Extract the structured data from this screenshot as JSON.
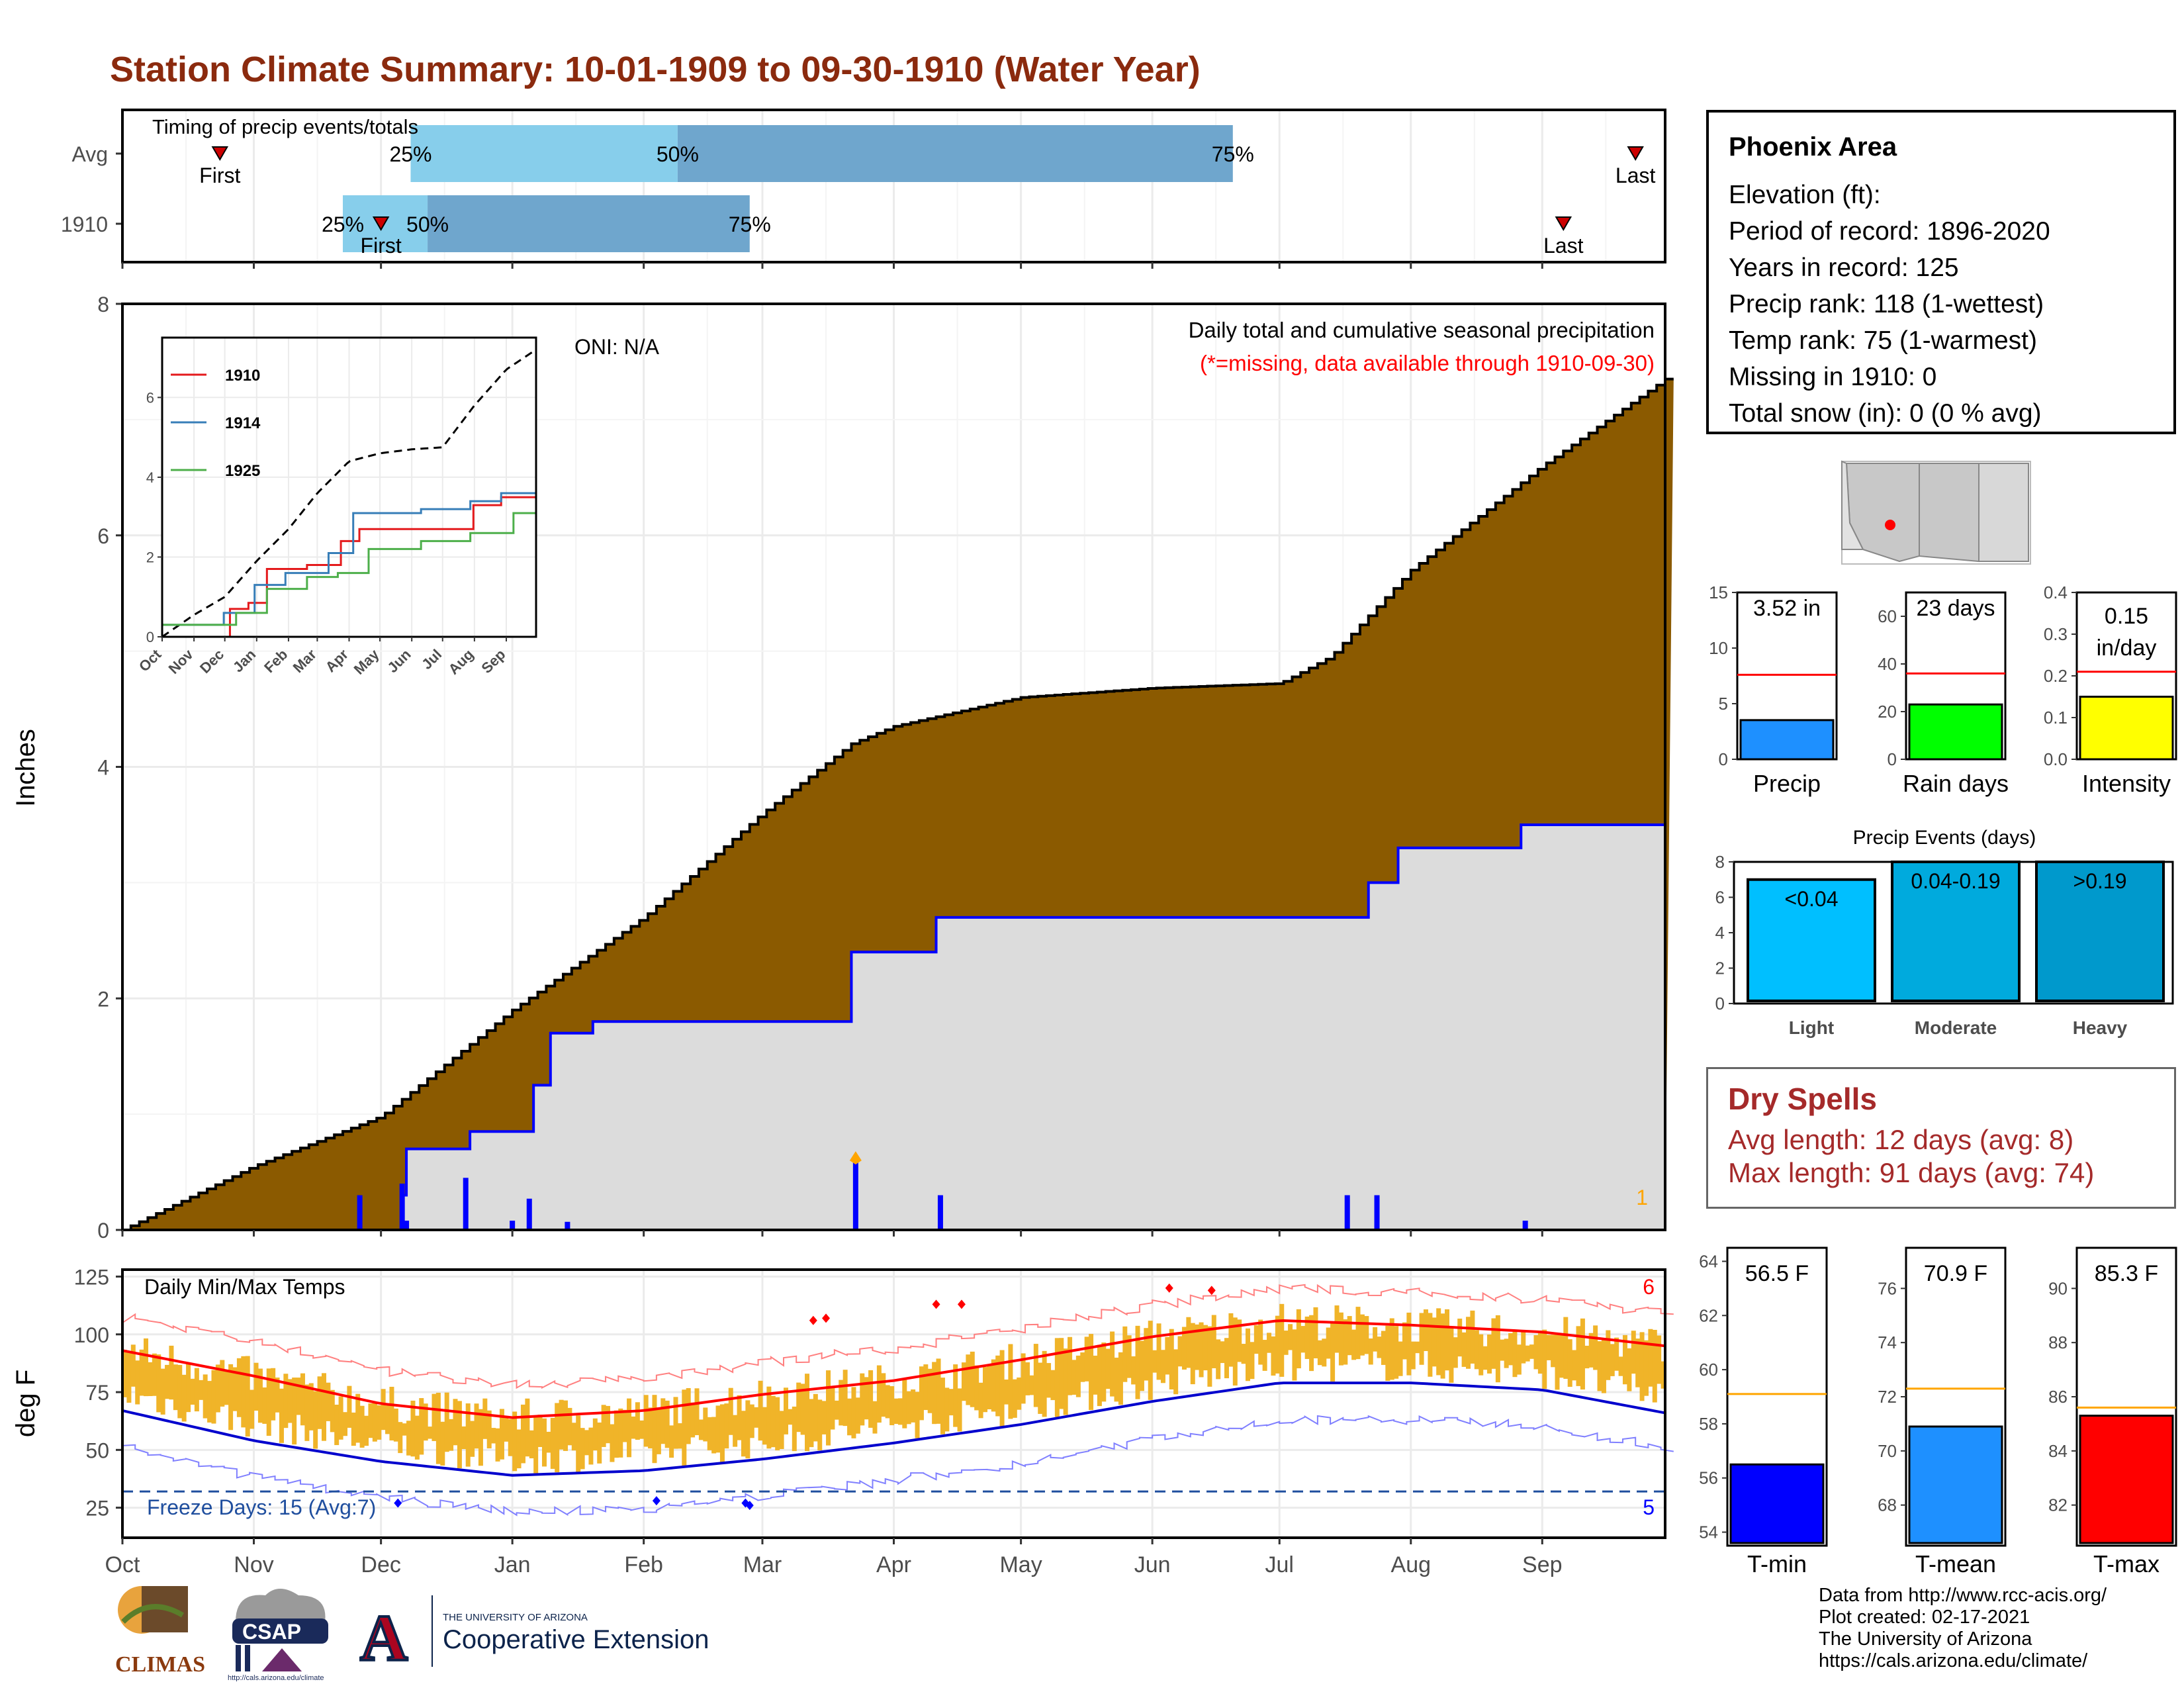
{
  "title": "Station Climate Summary: 10-01-1909 to 09-30-1910 (Water Year)",
  "timing": {
    "caption": "Timing of precip events/totals",
    "rows": [
      {
        "label": "Avg",
        "first_day": 23,
        "last_day": 357,
        "p25": 68,
        "p50": 131,
        "p75": 262,
        "pct_labels": [
          "25%",
          "50%",
          "75%"
        ],
        "first_label": "First",
        "last_label": "Last"
      },
      {
        "label": "1910",
        "first_day": 61,
        "last_day": 340,
        "p25": 52,
        "p50": 72,
        "p75": 148,
        "pct_labels": [
          "25%",
          "50%",
          "75%"
        ],
        "first_label": "First",
        "last_label": "Last"
      }
    ],
    "colors": {
      "light": "#87ceeb",
      "dark": "#6fa6cd",
      "marker": "#cc0000"
    }
  },
  "precip_panel": {
    "ylabel": "Inches",
    "yticks": [
      "0",
      "2",
      "4",
      "6",
      "8"
    ],
    "oni": "ONI: N/A",
    "caption": "Daily total and cumulative seasonal precipitation",
    "missing_note": "(*=missing, data available through 1910-09-30)",
    "missing_count": "1",
    "colors": {
      "avg_fill": "#8b5a00",
      "year_fill": "#dcdcdc",
      "year_line": "#0000ff",
      "daily_bar": "#0000ff",
      "flag": "#ffa500"
    }
  },
  "inset": {
    "yticks": [
      "0",
      "2",
      "4",
      "6"
    ],
    "months": [
      "Oct",
      "Nov",
      "Dec",
      "Jan",
      "Feb",
      "Mar",
      "Apr",
      "May",
      "Jun",
      "Jul",
      "Aug",
      "Sep"
    ],
    "legend": [
      {
        "name": "1910",
        "color": "#e41a1c"
      },
      {
        "name": "1914",
        "color": "#377eb8"
      },
      {
        "name": "1925",
        "color": "#4daf4a"
      }
    ]
  },
  "temp_panel": {
    "ylabel": "deg F",
    "yticks": [
      "25",
      "50",
      "75",
      "100",
      "125"
    ],
    "caption": "Daily Min/Max Temps",
    "freeze_label": "Freeze Days: 15 (Avg:7)",
    "count_high": "6",
    "count_low": "5",
    "colors": {
      "bar": "#f0b429",
      "tmax_avg": "#ff0000",
      "tmin_avg": "#0000cd",
      "tmax_rec": "#ff8080",
      "tmin_rec": "#8080ff",
      "freeze": "#1f4e9e"
    }
  },
  "months": [
    "Oct",
    "Nov",
    "Dec",
    "Jan",
    "Feb",
    "Mar",
    "Apr",
    "May",
    "Jun",
    "Jul",
    "Aug",
    "Sep"
  ],
  "info": {
    "location": "Phoenix Area",
    "rows": [
      "Elevation (ft):",
      "Period of record: 1896-2020",
      "Years in record: 125",
      "Precip rank: 118 (1-wettest)",
      "Temp rank: 75 (1-warmest)",
      "Missing in 1910: 0",
      "Total snow (in): 0 (0 % avg)"
    ]
  },
  "summary_bars": [
    {
      "label": "Precip",
      "value_text": "3.52 in",
      "value": 3.52,
      "avg": 7.6,
      "ymax": 15,
      "yticks": [
        "0",
        "5",
        "10",
        "15"
      ],
      "color": "#1e90ff"
    },
    {
      "label": "Rain days",
      "value_text": "23 days",
      "value": 23,
      "avg": 36,
      "ymax": 70,
      "yticks": [
        "0",
        "20",
        "40",
        "60"
      ],
      "color": "#00ff00"
    },
    {
      "label": "Intensity",
      "value_text": "0.15 in/day",
      "value": 0.15,
      "avg": 0.21,
      "ymax": 0.4,
      "yticks": [
        "0.0",
        "0.1",
        "0.2",
        "0.3",
        "0.4"
      ],
      "color": "#ffff00"
    }
  ],
  "events": {
    "title": "Precip Events (days)",
    "yticks": [
      "0",
      "2",
      "4",
      "6",
      "8"
    ],
    "bars": [
      {
        "cat": "Light",
        "label": "<0.04",
        "value": 7,
        "color": "#00bfff"
      },
      {
        "cat": "Moderate",
        "label": "0.04-0.19",
        "value": 8,
        "color": "#00aadd"
      },
      {
        "cat": "Heavy",
        "label": ">0.19",
        "value": 8,
        "color": "#0099cc"
      }
    ]
  },
  "dry_spells": {
    "title": "Dry Spells",
    "avg": "Avg length: 12 days (avg: 8)",
    "max": "Max length: 91 days (avg: 74)"
  },
  "temp_bars": [
    {
      "label": "T-min",
      "value_text": "56.5 F",
      "value": 56.5,
      "avg": 59.1,
      "ymin": 53.5,
      "ymax": 64.5,
      "yticks": [
        "54",
        "56",
        "58",
        "60",
        "62",
        "64"
      ],
      "color": "#0000ff"
    },
    {
      "label": "T-mean",
      "value_text": "70.9 F",
      "value": 70.9,
      "avg": 72.3,
      "ymin": 66.5,
      "ymax": 77.5,
      "yticks": [
        "68",
        "70",
        "72",
        "74",
        "76"
      ],
      "color": "#1e90ff"
    },
    {
      "label": "T-max",
      "value_text": "85.3 F",
      "value": 85.3,
      "avg": 85.6,
      "ymin": 80.5,
      "ymax": 91.5,
      "yticks": [
        "82",
        "84",
        "86",
        "88",
        "90"
      ],
      "color": "#ff0000"
    }
  ],
  "footer": [
    "Data from http://www.rcc-acis.org/",
    "Plot created: 02-17-2021",
    "The University of Arizona",
    "https://cals.arizona.edu/climate/"
  ],
  "logos": {
    "climas": "CLIMAS",
    "csap": "CSAP",
    "csap_url": "http://cals.arizona.edu/climate",
    "ua_small": "THE UNIVERSITY OF ARIZONA",
    "ua_big": "Cooperative Extension",
    "ua_mark": "A"
  },
  "chart_data": [
    {
      "type": "area",
      "title": "Daily total and cumulative seasonal precipitation",
      "ylabel": "Inches",
      "ylim": [
        0,
        8
      ],
      "x_unit": "day of water year (Oct 1 = 0)",
      "series": [
        {
          "name": "",
          "x": [
            0,
            31,
            61,
            92,
            123,
            151,
            172,
            182,
            212,
            243,
            273,
            285,
            304,
            335,
            364
          ],
          "values": [
            0,
            0.55,
            0.98,
            1.9,
            2.7,
            3.6,
            4.2,
            4.35,
            4.6,
            4.68,
            4.72,
            4.95,
            5.7,
            6.6,
            7.35
          ]
        },
        {
          "name": "1910",
          "x": [
            0,
            61,
            66,
            67,
            82,
            97,
            101,
            111,
            140,
            172,
            178,
            192,
            290,
            294,
            301,
            330,
            364
          ],
          "values": [
            0,
            0,
            0.3,
            0.7,
            0.85,
            1.25,
            1.7,
            1.8,
            1.8,
            2.4,
            2.4,
            2.7,
            2.7,
            3.0,
            3.3,
            3.5,
            3.5
          ]
        },
        {
          "name": "",
          "x": [
            56,
            66,
            67,
            81,
            92,
            96,
            105,
            173,
            193,
            289,
            296,
            331
          ],
          "values": [
            0.3,
            0.4,
            0.08,
            0.45,
            0.08,
            0.27,
            0.07,
            0.6,
            0.3,
            0.3,
            0.3,
            0.08
          ]
        }
      ]
    },
    {
      "type": "line",
      "ylim": [
        0,
        7.5
      ],
      "series": [
        {
          "name": "",
          "x": [
            0,
            31,
            61,
            92,
            123,
            151,
            182,
            212,
            243,
            273,
            304,
            335,
            364
          ],
          "values": [
            0,
            0.55,
            1.0,
            1.9,
            2.7,
            3.6,
            4.4,
            4.6,
            4.7,
            4.75,
            5.8,
            6.7,
            7.2
          ]
        },
        {
          "name": "1910",
          "x": [
            0,
            56,
            66,
            82,
            101,
            140,
            172,
            192,
            290,
            301,
            330,
            364
          ],
          "values": [
            0,
            0,
            0.7,
            0.85,
            1.7,
            1.8,
            2.4,
            2.7,
            2.7,
            3.3,
            3.5,
            3.52
          ]
        },
        {
          "name": "1914",
          "x": [
            0,
            30,
            60,
            90,
            120,
            160,
            185,
            250,
            300,
            330,
            364
          ],
          "values": [
            0.3,
            0.3,
            0.6,
            1.3,
            1.6,
            2.1,
            3.1,
            3.2,
            3.4,
            3.6,
            3.7
          ]
        },
        {
          "name": "1925",
          "x": [
            0,
            40,
            70,
            100,
            140,
            170,
            200,
            250,
            300,
            340,
            364
          ],
          "values": [
            0.3,
            0.3,
            0.6,
            1.2,
            1.5,
            1.6,
            2.2,
            2.4,
            2.6,
            3.1,
            4.2
          ]
        }
      ]
    },
    {
      "type": "bar",
      "title": "Daily Min/Max Temps",
      "ylabel": "deg F",
      "ylim": [
        12,
        128
      ],
      "series": [
        {
          "name": "",
          "x": [
            0,
            31,
            61,
            92,
            123,
            151,
            182,
            212,
            243,
            273,
            304,
            335,
            364
          ],
          "values": [
            93,
            82,
            70,
            64,
            67,
            74,
            80,
            89,
            99,
            106,
            104,
            101,
            95
          ]
        },
        {
          "name": "",
          "x": [
            0,
            31,
            61,
            92,
            123,
            151,
            182,
            212,
            243,
            273,
            304,
            335,
            364
          ],
          "values": [
            67,
            54,
            45,
            39,
            41,
            46,
            53,
            61,
            71,
            79,
            79,
            76,
            66
          ]
        }
      ]
    }
  ]
}
